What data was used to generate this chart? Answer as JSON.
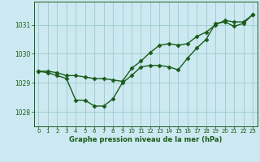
{
  "background_color": "#cce8f0",
  "plot_bg_color": "#cce8f0",
  "grid_color": "#99cccc",
  "line_color": "#1a5c1a",
  "xlabel": "Graphe pression niveau de la mer (hPa)",
  "xlim": [
    -0.5,
    23.5
  ],
  "ylim": [
    1027.5,
    1031.8
  ],
  "yticks": [
    1028,
    1029,
    1030,
    1031
  ],
  "xticks": [
    0,
    1,
    2,
    3,
    4,
    5,
    6,
    7,
    8,
    9,
    10,
    11,
    12,
    13,
    14,
    15,
    16,
    17,
    18,
    19,
    20,
    21,
    22,
    23
  ],
  "line1_x": [
    0,
    1,
    2,
    3,
    4,
    5,
    6,
    7,
    8,
    9,
    10,
    11,
    12,
    13,
    14,
    15,
    16,
    17,
    18,
    19,
    20,
    21,
    22,
    23
  ],
  "line1_y": [
    1029.4,
    1029.35,
    1029.25,
    1029.15,
    1028.4,
    1028.4,
    1028.2,
    1028.2,
    1028.45,
    1029.0,
    1029.25,
    1029.55,
    1029.6,
    1029.6,
    1029.55,
    1029.45,
    1029.85,
    1030.2,
    1030.5,
    1031.05,
    1031.1,
    1030.95,
    1031.05,
    1031.35
  ],
  "line2_x": [
    0,
    1,
    2,
    3,
    4,
    5,
    6,
    7,
    8,
    9,
    10,
    11,
    12,
    13,
    14,
    15,
    16,
    17,
    18,
    19,
    20,
    21,
    22,
    23
  ],
  "line2_y": [
    1029.4,
    1029.4,
    1029.35,
    1029.25,
    1029.25,
    1029.2,
    1029.15,
    1029.15,
    1029.1,
    1029.05,
    1029.5,
    1029.75,
    1030.05,
    1030.3,
    1030.35,
    1030.3,
    1030.35,
    1030.6,
    1030.75,
    1031.0,
    1031.15,
    1031.1,
    1031.1,
    1031.35
  ],
  "marker": "D",
  "markersize": 2.5,
  "linewidth": 1.0
}
